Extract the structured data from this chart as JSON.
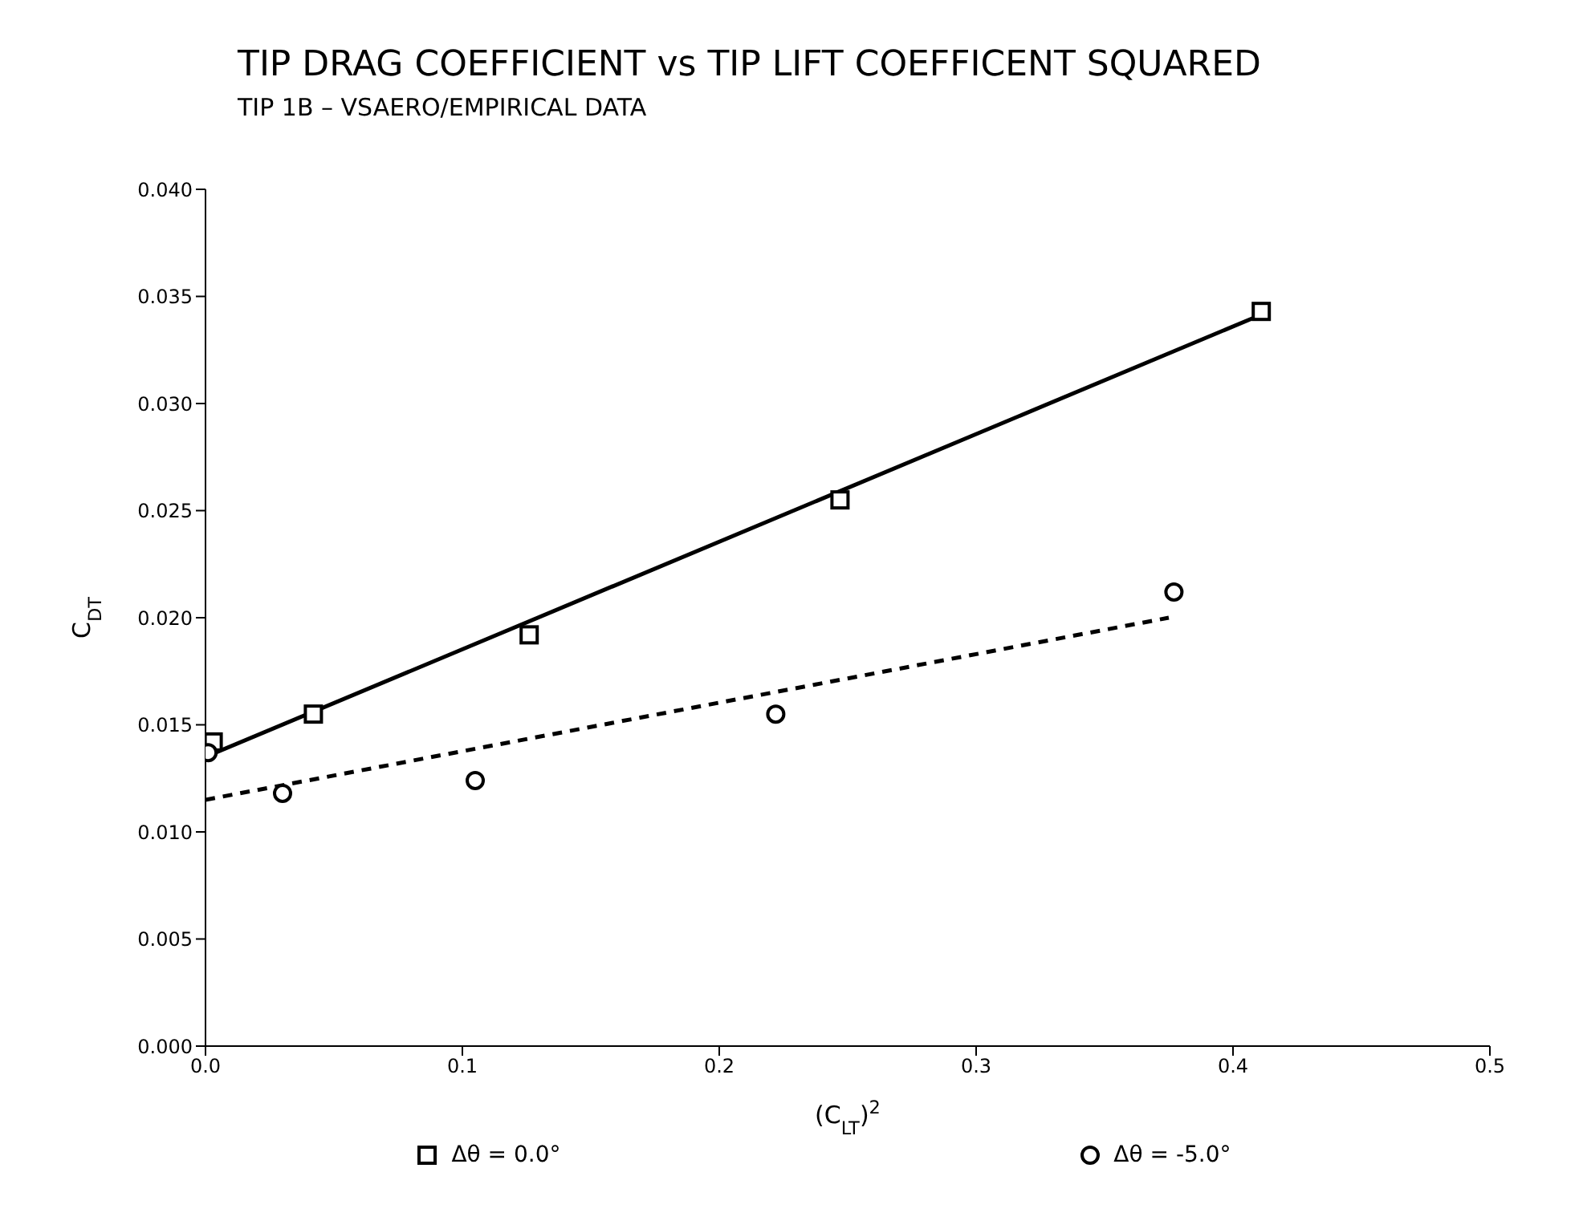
{
  "chart_data": {
    "type": "scatter",
    "title": "TIP DRAG COEFFICIENT vs TIP LIFT COEFFICENT SQUARED",
    "subtitle": "TIP 1B – VSAERO/EMPIRICAL DATA",
    "xlabel": "(C$_{LT}$)$^{2}$",
    "ylabel": "C$_{DT}$",
    "xlim": [
      0,
      0.5
    ],
    "xticks": [
      {
        "value": 0,
        "label": "0.0"
      },
      {
        "value": 0.1,
        "label": "0.1"
      },
      {
        "value": 0.2,
        "label": "0.2"
      },
      {
        "value": 0.3,
        "label": "0.3"
      },
      {
        "value": 0.4,
        "label": "0.4"
      },
      {
        "value": 0.5,
        "label": "0.5"
      }
    ],
    "ylim": [
      0,
      0.04
    ],
    "yticks": [
      {
        "value": 0,
        "label": "0.000"
      },
      {
        "value": 0.005,
        "label": "0.005"
      },
      {
        "value": 0.01,
        "label": "0.010"
      },
      {
        "value": 0.015,
        "label": "0.015"
      },
      {
        "value": 0.02,
        "label": "0.020"
      },
      {
        "value": 0.025,
        "label": "0.025"
      },
      {
        "value": 0.03,
        "label": "0.030"
      },
      {
        "value": 0.035,
        "label": "0.035"
      },
      {
        "value": 0.04,
        "label": "0.040"
      }
    ],
    "legend": "bottom",
    "series": [
      {
        "name": "Δθ = 0.0°",
        "marker": "square",
        "color": "#000000",
        "x": [
          0.003,
          0.042,
          0.126,
          0.247,
          0.411
        ],
        "values": [
          0.0142,
          0.0155,
          0.0192,
          0.0255,
          0.0343
        ]
      },
      {
        "name": "Δθ = -5.0°",
        "marker": "circle",
        "color": "#000000",
        "x": [
          0.001,
          0.03,
          0.105,
          0.222,
          0.377
        ],
        "values": [
          0.0137,
          0.0118,
          0.0124,
          0.0155,
          0.0212
        ]
      },
      {
        "type": "line",
        "line_style": "solid",
        "color": "#000000",
        "x": [
          0,
          0.408
        ],
        "values": [
          0.0135,
          0.034
        ]
      },
      {
        "type": "line",
        "line_style": "dashed",
        "color": "#000000",
        "x": [
          0,
          0.375
        ],
        "values": [
          0.0115,
          0.02
        ]
      }
    ]
  }
}
